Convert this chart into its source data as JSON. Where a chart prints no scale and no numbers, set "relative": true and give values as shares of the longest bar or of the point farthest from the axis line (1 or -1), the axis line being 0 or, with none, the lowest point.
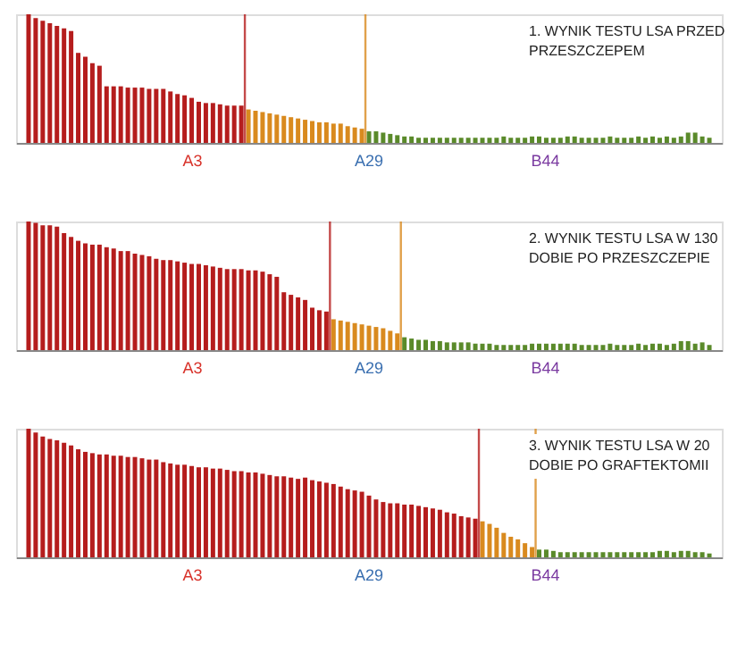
{
  "chart_data": [
    {
      "type": "bar",
      "title": "1. WYNIK TESTU LSA PRZED PRZESZCZEPEM",
      "relative": true,
      "categories": [
        null,
        null,
        null,
        null,
        null,
        null,
        null,
        null,
        null,
        null,
        null,
        null,
        null,
        null,
        null,
        null,
        null,
        null,
        null,
        null,
        null,
        null,
        null,
        null,
        null,
        null,
        null,
        null,
        null,
        null,
        null,
        null,
        null,
        null,
        null,
        null,
        null,
        null,
        null,
        null,
        null,
        null,
        null,
        null,
        null,
        null,
        null,
        null,
        null,
        null,
        null,
        null,
        null,
        null,
        null,
        null,
        null,
        null,
        null,
        null,
        null,
        null,
        null,
        null,
        null,
        null,
        null,
        null,
        null,
        null,
        null,
        null,
        null,
        null,
        null,
        null,
        null,
        null,
        null,
        null,
        null,
        null,
        null,
        null,
        null,
        null,
        null,
        null,
        null,
        null,
        null,
        null,
        null,
        null,
        null,
        null,
        null
      ],
      "series": [
        {
          "colors": [
            "#b51d1d",
            "#b51d1d",
            "#b51d1d",
            "#b51d1d",
            "#b51d1d",
            "#b51d1d",
            "#b51d1d",
            "#b51d1d",
            "#b51d1d",
            "#b51d1d",
            "#b51d1d",
            "#b51d1d",
            "#b51d1d",
            "#b51d1d",
            "#b51d1d",
            "#b51d1d",
            "#b51d1d",
            "#b51d1d",
            "#b51d1d",
            "#b51d1d",
            "#b51d1d",
            "#b51d1d",
            "#b51d1d",
            "#b51d1d",
            "#b51d1d",
            "#b51d1d",
            "#b51d1d",
            "#b51d1d",
            "#b51d1d",
            "#b51d1d",
            "#b51d1d",
            "#d98a1e",
            "#d98a1e",
            "#d98a1e",
            "#d98a1e",
            "#d98a1e",
            "#d98a1e",
            "#d98a1e",
            "#d98a1e",
            "#d98a1e",
            "#d98a1e",
            "#d98a1e",
            "#d98a1e",
            "#d98a1e",
            "#d98a1e",
            "#d98a1e",
            "#d98a1e",
            "#d98a1e",
            "#5a8a2a",
            "#5a8a2a",
            "#5a8a2a",
            "#5a8a2a",
            "#5a8a2a",
            "#5a8a2a",
            "#5a8a2a",
            "#5a8a2a",
            "#5a8a2a",
            "#5a8a2a",
            "#5a8a2a",
            "#5a8a2a",
            "#5a8a2a",
            "#5a8a2a",
            "#5a8a2a",
            "#5a8a2a",
            "#5a8a2a",
            "#5a8a2a",
            "#5a8a2a",
            "#5a8a2a",
            "#5a8a2a",
            "#5a8a2a",
            "#5a8a2a",
            "#5a8a2a",
            "#5a8a2a",
            "#5a8a2a",
            "#5a8a2a",
            "#5a8a2a",
            "#5a8a2a",
            "#5a8a2a",
            "#5a8a2a",
            "#5a8a2a",
            "#5a8a2a",
            "#5a8a2a",
            "#5a8a2a",
            "#5a8a2a",
            "#5a8a2a",
            "#5a8a2a",
            "#5a8a2a",
            "#5a8a2a",
            "#5a8a2a",
            "#5a8a2a",
            "#5a8a2a",
            "#5a8a2a",
            "#5a8a2a",
            "#5a8a2a",
            "#5a8a2a",
            "#5a8a2a",
            "#5a8a2a"
          ],
          "values": [
            1.0,
            0.97,
            0.95,
            0.93,
            0.91,
            0.89,
            0.87,
            0.7,
            0.67,
            0.62,
            0.6,
            0.44,
            0.44,
            0.44,
            0.43,
            0.43,
            0.43,
            0.42,
            0.42,
            0.42,
            0.4,
            0.38,
            0.37,
            0.35,
            0.32,
            0.31,
            0.31,
            0.3,
            0.29,
            0.29,
            0.29,
            0.26,
            0.25,
            0.24,
            0.23,
            0.22,
            0.21,
            0.2,
            0.19,
            0.18,
            0.17,
            0.16,
            0.16,
            0.15,
            0.15,
            0.13,
            0.12,
            0.11,
            0.09,
            0.09,
            0.08,
            0.07,
            0.06,
            0.05,
            0.05,
            0.04,
            0.04,
            0.04,
            0.04,
            0.04,
            0.04,
            0.04,
            0.04,
            0.04,
            0.04,
            0.04,
            0.04,
            0.05,
            0.04,
            0.04,
            0.04,
            0.05,
            0.05,
            0.04,
            0.04,
            0.04,
            0.05,
            0.05,
            0.04,
            0.04,
            0.04,
            0.04,
            0.05,
            0.04,
            0.04,
            0.04,
            0.05,
            0.04,
            0.05,
            0.04,
            0.05,
            0.04,
            0.05,
            0.08,
            0.08,
            0.05,
            0.04
          ]
        }
      ],
      "annotations": [
        "A3",
        "A29",
        "B44"
      ]
    },
    {
      "type": "bar",
      "title": "2. WYNIK TESTU LSA W 130 DOBIE PO PRZESZCZEPIE",
      "relative": true,
      "categories": [
        null,
        null,
        null,
        null,
        null,
        null,
        null,
        null,
        null,
        null,
        null,
        null,
        null,
        null,
        null,
        null,
        null,
        null,
        null,
        null,
        null,
        null,
        null,
        null,
        null,
        null,
        null,
        null,
        null,
        null,
        null,
        null,
        null,
        null,
        null,
        null,
        null,
        null,
        null,
        null,
        null,
        null,
        null,
        null,
        null,
        null,
        null,
        null,
        null,
        null,
        null,
        null,
        null,
        null,
        null,
        null,
        null,
        null,
        null,
        null,
        null,
        null,
        null,
        null,
        null,
        null,
        null,
        null,
        null,
        null,
        null,
        null,
        null,
        null,
        null,
        null,
        null,
        null,
        null,
        null,
        null,
        null,
        null,
        null,
        null,
        null,
        null,
        null,
        null,
        null,
        null,
        null,
        null,
        null,
        null,
        null,
        null
      ],
      "series": [
        {
          "colors": [
            "#b51d1d",
            "#b51d1d",
            "#b51d1d",
            "#b51d1d",
            "#b51d1d",
            "#b51d1d",
            "#b51d1d",
            "#b51d1d",
            "#b51d1d",
            "#b51d1d",
            "#b51d1d",
            "#b51d1d",
            "#b51d1d",
            "#b51d1d",
            "#b51d1d",
            "#b51d1d",
            "#b51d1d",
            "#b51d1d",
            "#b51d1d",
            "#b51d1d",
            "#b51d1d",
            "#b51d1d",
            "#b51d1d",
            "#b51d1d",
            "#b51d1d",
            "#b51d1d",
            "#b51d1d",
            "#b51d1d",
            "#b51d1d",
            "#b51d1d",
            "#b51d1d",
            "#b51d1d",
            "#b51d1d",
            "#b51d1d",
            "#b51d1d",
            "#b51d1d",
            "#b51d1d",
            "#b51d1d",
            "#b51d1d",
            "#b51d1d",
            "#b51d1d",
            "#b51d1d",
            "#b51d1d",
            "#d98a1e",
            "#d98a1e",
            "#d98a1e",
            "#d98a1e",
            "#d98a1e",
            "#d98a1e",
            "#d98a1e",
            "#d98a1e",
            "#d98a1e",
            "#d98a1e",
            "#5a8a2a",
            "#5a8a2a",
            "#5a8a2a",
            "#5a8a2a",
            "#5a8a2a",
            "#5a8a2a",
            "#5a8a2a",
            "#5a8a2a",
            "#5a8a2a",
            "#5a8a2a",
            "#5a8a2a",
            "#5a8a2a",
            "#5a8a2a",
            "#5a8a2a",
            "#5a8a2a",
            "#5a8a2a",
            "#5a8a2a",
            "#5a8a2a",
            "#5a8a2a",
            "#5a8a2a",
            "#5a8a2a",
            "#5a8a2a",
            "#5a8a2a",
            "#5a8a2a",
            "#5a8a2a",
            "#5a8a2a",
            "#5a8a2a",
            "#5a8a2a",
            "#5a8a2a",
            "#5a8a2a",
            "#5a8a2a",
            "#5a8a2a",
            "#5a8a2a",
            "#5a8a2a",
            "#5a8a2a",
            "#5a8a2a",
            "#5a8a2a",
            "#5a8a2a",
            "#5a8a2a",
            "#5a8a2a",
            "#5a8a2a",
            "#5a8a2a",
            "#5a8a2a",
            "#5a8a2a"
          ],
          "values": [
            1.0,
            0.99,
            0.97,
            0.97,
            0.96,
            0.91,
            0.88,
            0.85,
            0.83,
            0.82,
            0.82,
            0.8,
            0.79,
            0.77,
            0.77,
            0.75,
            0.74,
            0.73,
            0.71,
            0.7,
            0.7,
            0.69,
            0.68,
            0.67,
            0.67,
            0.66,
            0.65,
            0.64,
            0.63,
            0.63,
            0.63,
            0.62,
            0.62,
            0.61,
            0.59,
            0.57,
            0.45,
            0.43,
            0.41,
            0.39,
            0.33,
            0.31,
            0.3,
            0.24,
            0.23,
            0.22,
            0.21,
            0.2,
            0.19,
            0.18,
            0.17,
            0.15,
            0.13,
            0.1,
            0.09,
            0.08,
            0.08,
            0.07,
            0.07,
            0.06,
            0.06,
            0.06,
            0.06,
            0.05,
            0.05,
            0.05,
            0.04,
            0.04,
            0.04,
            0.04,
            0.04,
            0.05,
            0.05,
            0.05,
            0.05,
            0.05,
            0.05,
            0.05,
            0.04,
            0.04,
            0.04,
            0.04,
            0.05,
            0.04,
            0.04,
            0.04,
            0.05,
            0.04,
            0.05,
            0.05,
            0.04,
            0.05,
            0.07,
            0.07,
            0.05,
            0.06,
            0.04
          ]
        }
      ],
      "annotations": [
        "A3",
        "A29",
        "B44"
      ]
    },
    {
      "type": "bar",
      "title": "3. WYNIK TESTU LSA W 20 DOBIE PO GRAFTEKTOMII",
      "relative": true,
      "categories": [
        null,
        null,
        null,
        null,
        null,
        null,
        null,
        null,
        null,
        null,
        null,
        null,
        null,
        null,
        null,
        null,
        null,
        null,
        null,
        null,
        null,
        null,
        null,
        null,
        null,
        null,
        null,
        null,
        null,
        null,
        null,
        null,
        null,
        null,
        null,
        null,
        null,
        null,
        null,
        null,
        null,
        null,
        null,
        null,
        null,
        null,
        null,
        null,
        null,
        null,
        null,
        null,
        null,
        null,
        null,
        null,
        null,
        null,
        null,
        null,
        null,
        null,
        null,
        null,
        null,
        null,
        null,
        null,
        null,
        null,
        null,
        null,
        null,
        null,
        null,
        null,
        null,
        null,
        null,
        null,
        null,
        null,
        null,
        null,
        null,
        null,
        null,
        null,
        null,
        null,
        null,
        null,
        null,
        null,
        null,
        null,
        null
      ],
      "series": [
        {
          "colors": [
            "#b51d1d",
            "#b51d1d",
            "#b51d1d",
            "#b51d1d",
            "#b51d1d",
            "#b51d1d",
            "#b51d1d",
            "#b51d1d",
            "#b51d1d",
            "#b51d1d",
            "#b51d1d",
            "#b51d1d",
            "#b51d1d",
            "#b51d1d",
            "#b51d1d",
            "#b51d1d",
            "#b51d1d",
            "#b51d1d",
            "#b51d1d",
            "#b51d1d",
            "#b51d1d",
            "#b51d1d",
            "#b51d1d",
            "#b51d1d",
            "#b51d1d",
            "#b51d1d",
            "#b51d1d",
            "#b51d1d",
            "#b51d1d",
            "#b51d1d",
            "#b51d1d",
            "#b51d1d",
            "#b51d1d",
            "#b51d1d",
            "#b51d1d",
            "#b51d1d",
            "#b51d1d",
            "#b51d1d",
            "#b51d1d",
            "#b51d1d",
            "#b51d1d",
            "#b51d1d",
            "#b51d1d",
            "#b51d1d",
            "#b51d1d",
            "#b51d1d",
            "#b51d1d",
            "#b51d1d",
            "#b51d1d",
            "#b51d1d",
            "#b51d1d",
            "#b51d1d",
            "#b51d1d",
            "#b51d1d",
            "#b51d1d",
            "#b51d1d",
            "#b51d1d",
            "#b51d1d",
            "#b51d1d",
            "#b51d1d",
            "#b51d1d",
            "#b51d1d",
            "#b51d1d",
            "#b51d1d",
            "#d98a1e",
            "#d98a1e",
            "#d98a1e",
            "#d98a1e",
            "#d98a1e",
            "#d98a1e",
            "#d98a1e",
            "#d98a1e",
            "#5a8a2a",
            "#5a8a2a",
            "#5a8a2a",
            "#5a8a2a",
            "#5a8a2a",
            "#5a8a2a",
            "#5a8a2a",
            "#5a8a2a",
            "#5a8a2a",
            "#5a8a2a",
            "#5a8a2a",
            "#5a8a2a",
            "#5a8a2a",
            "#5a8a2a",
            "#5a8a2a",
            "#5a8a2a",
            "#5a8a2a",
            "#5a8a2a",
            "#5a8a2a",
            "#5a8a2a",
            "#5a8a2a",
            "#5a8a2a",
            "#5a8a2a",
            "#5a8a2a",
            "#5a8a2a"
          ],
          "values": [
            1.0,
            0.97,
            0.94,
            0.92,
            0.91,
            0.89,
            0.87,
            0.84,
            0.82,
            0.81,
            0.8,
            0.8,
            0.79,
            0.79,
            0.78,
            0.78,
            0.77,
            0.76,
            0.76,
            0.74,
            0.73,
            0.72,
            0.72,
            0.71,
            0.7,
            0.7,
            0.69,
            0.69,
            0.68,
            0.67,
            0.67,
            0.66,
            0.66,
            0.65,
            0.64,
            0.63,
            0.63,
            0.62,
            0.61,
            0.62,
            0.6,
            0.59,
            0.58,
            0.57,
            0.55,
            0.53,
            0.52,
            0.51,
            0.48,
            0.45,
            0.43,
            0.42,
            0.42,
            0.41,
            0.41,
            0.4,
            0.39,
            0.38,
            0.37,
            0.35,
            0.34,
            0.32,
            0.31,
            0.3,
            0.28,
            0.26,
            0.23,
            0.19,
            0.16,
            0.14,
            0.11,
            0.08,
            0.06,
            0.06,
            0.05,
            0.04,
            0.04,
            0.04,
            0.04,
            0.04,
            0.04,
            0.04,
            0.04,
            0.04,
            0.04,
            0.04,
            0.04,
            0.04,
            0.04,
            0.05,
            0.05,
            0.04,
            0.05,
            0.05,
            0.04,
            0.04,
            0.03
          ]
        }
      ],
      "annotations": [
        "A3",
        "A29",
        "B44"
      ]
    }
  ]
}
